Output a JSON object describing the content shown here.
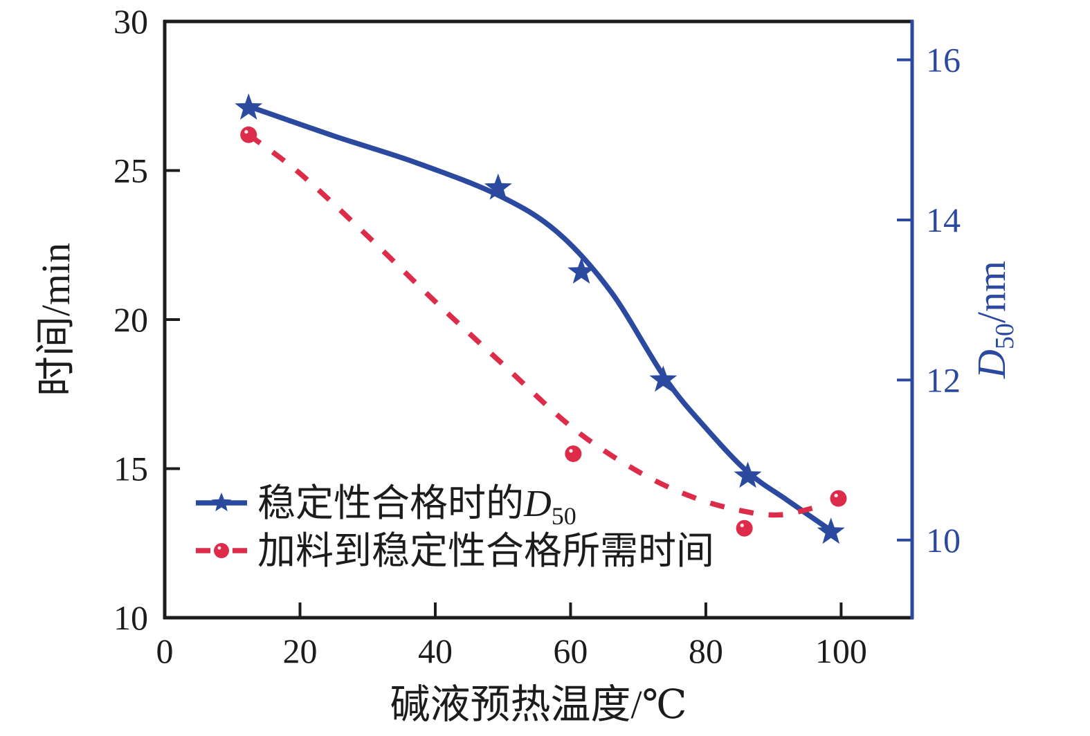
{
  "chart_data": {
    "type": "line",
    "title": "",
    "xlabel": "碱液预热温度/℃",
    "ylabel_left": "时间/min",
    "ylabel_right_main": "D",
    "ylabel_right_sub": "50",
    "ylabel_right_rest": "/nm",
    "xlim": [
      0,
      110.5
    ],
    "ylim_left": [
      10,
      30
    ],
    "ylim_right": [
      9.03,
      16.48
    ],
    "x_ticks": [
      0,
      20,
      40,
      60,
      80,
      100
    ],
    "y_left_ticks": [
      10,
      15,
      20,
      25,
      30
    ],
    "y_right_ticks": [
      10,
      12,
      14,
      16
    ],
    "grid": false,
    "legend_position": "lower-left-inside",
    "colors": {
      "axis": "#1c1c1c",
      "blue": "#2b4a9f",
      "red": "#dc2c4a"
    },
    "series": [
      {
        "name": "稳定性合格时的D50",
        "axis": "right",
        "color": "#2b4a9f",
        "marker": "star",
        "line": "solid",
        "x": [
          12.4,
          49.3,
          61.6,
          73.7,
          86.2,
          98.5
        ],
        "y": [
          15.4,
          14.4,
          13.35,
          12.0,
          10.8,
          10.1
        ],
        "fit": [
          [
            12.4,
            15.42
          ],
          [
            25,
            15.05
          ],
          [
            37,
            14.72
          ],
          [
            49.3,
            14.31
          ],
          [
            58,
            13.85
          ],
          [
            66,
            13.1
          ],
          [
            74,
            12.02
          ],
          [
            80,
            11.4
          ],
          [
            86.2,
            10.85
          ],
          [
            92,
            10.5
          ],
          [
            98.5,
            10.12
          ]
        ]
      },
      {
        "name": "加料到稳定性合格所需时间",
        "axis": "left",
        "color": "#dc2c4a",
        "marker": "circle",
        "line": "dashed",
        "x": [
          12.4,
          60.4,
          85.7,
          99.6
        ],
        "y": [
          26.2,
          15.5,
          13.0,
          14.0
        ],
        "fit": [
          [
            12.4,
            26.2
          ],
          [
            20,
            24.9
          ],
          [
            30,
            22.8
          ],
          [
            40,
            20.6
          ],
          [
            50,
            18.5
          ],
          [
            60.4,
            16.35
          ],
          [
            70,
            14.9
          ],
          [
            78,
            14.05
          ],
          [
            85,
            13.6
          ],
          [
            91,
            13.45
          ],
          [
            97,
            13.75
          ]
        ]
      }
    ],
    "legend": [
      {
        "label_main": "稳定性合格时的",
        "label_var": "D",
        "label_sub": "50",
        "series": 0
      },
      {
        "label_main": "加料到稳定性合格所需时间",
        "label_var": "",
        "label_sub": "",
        "series": 1
      }
    ]
  }
}
